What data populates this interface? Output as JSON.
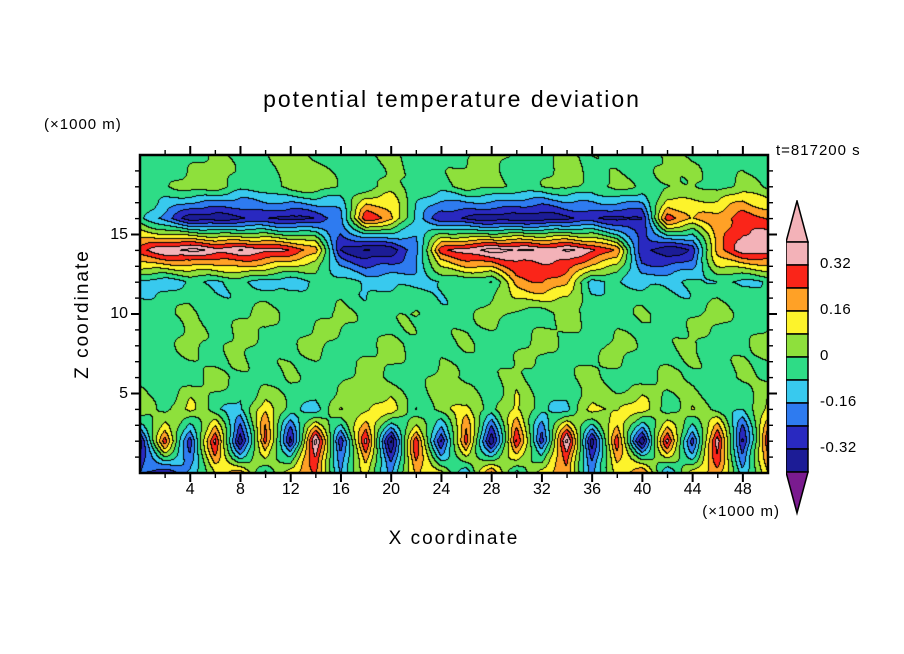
{
  "title": "potential temperature deviation",
  "time_label": "t=817200 s",
  "x_axis": {
    "label": "X coordinate",
    "unit": "(×1000 m)",
    "min": 0,
    "max": 50,
    "major_step": 4,
    "minor_step": 2,
    "ticks": [
      4,
      8,
      12,
      16,
      20,
      24,
      28,
      32,
      36,
      40,
      44,
      48
    ]
  },
  "y_axis": {
    "label": "Z coordinate",
    "unit": "(×1000 m)",
    "min": 0,
    "max": 20,
    "major_step": 5,
    "minor_step": 1,
    "ticks": [
      5,
      10,
      15
    ]
  },
  "colorbar": {
    "labels": [
      "0.32",
      "0.16",
      "0",
      "-0.16",
      "-0.32"
    ]
  },
  "chart_data": {
    "type": "contour",
    "title": "potential temperature deviation",
    "time": "t=817200 s",
    "xlabel": "X coordinate",
    "zlabel": "Z coordinate",
    "x_unit": "(×1000 m)",
    "z_unit": "(×1000 m)",
    "x_range": [
      0,
      50
    ],
    "z_range": [
      0,
      20
    ],
    "levels": [
      -0.4,
      -0.32,
      -0.24,
      -0.16,
      -0.08,
      0,
      0.08,
      0.16,
      0.24,
      0.32,
      0.4
    ],
    "palette": [
      "#7a1b8f",
      "#1c1c96",
      "#2929c0",
      "#2e7bf0",
      "#38c9ee",
      "#2edc86",
      "#8ee03c",
      "#fdf32b",
      "#ffa126",
      "#fa2519",
      "#f3b2b8",
      "#f3b2b8"
    ],
    "x": [
      0,
      2,
      4,
      6,
      8,
      10,
      12,
      14,
      16,
      18,
      20,
      22,
      24,
      26,
      28,
      30,
      32,
      34,
      36,
      38,
      40,
      42,
      44,
      46,
      48,
      50
    ],
    "z": [
      20,
      18,
      16,
      14,
      12,
      10,
      8,
      6,
      4,
      2,
      0
    ],
    "values": [
      [
        -0.03,
        -0.04,
        -0.02,
        0.03,
        -0.04,
        -0.03,
        0.04,
        -0.02,
        -0.04,
        -0.03,
        0.03,
        -0.04,
        -0.02,
        -0.03,
        0.04,
        -0.03,
        -0.04,
        0.03,
        -0.02,
        -0.04,
        -0.03,
        0.04,
        -0.03,
        -0.02,
        -0.04,
        -0.03
      ],
      [
        -0.04,
        -0.02,
        0.04,
        0.05,
        -0.03,
        -0.04,
        0.03,
        0.06,
        -0.02,
        -0.04,
        0.04,
        -0.03,
        -0.04,
        0.05,
        0.03,
        -0.04,
        -0.02,
        0.04,
        -0.03,
        0.05,
        -0.04,
        -0.02,
        0.03,
        -0.04,
        0.04,
        -0.03
      ],
      [
        -0.05,
        -0.2,
        -0.35,
        -0.38,
        -0.35,
        -0.3,
        -0.35,
        -0.3,
        -0.2,
        0.3,
        0.2,
        -0.1,
        -0.3,
        -0.35,
        -0.38,
        -0.35,
        -0.38,
        -0.35,
        -0.3,
        -0.35,
        -0.3,
        0.28,
        0.15,
        0.2,
        0.3,
        0.25
      ],
      [
        0.3,
        0.38,
        0.42,
        0.38,
        0.4,
        0.35,
        0.3,
        0.2,
        -0.3,
        -0.42,
        -0.38,
        -0.2,
        0.3,
        0.38,
        0.42,
        0.4,
        0.38,
        0.42,
        0.35,
        0.2,
        -0.3,
        -0.38,
        -0.3,
        0.2,
        0.35,
        0.4
      ],
      [
        -0.1,
        -0.12,
        -0.08,
        -0.1,
        -0.06,
        -0.1,
        -0.12,
        -0.08,
        -0.05,
        -0.1,
        -0.08,
        -0.12,
        -0.1,
        -0.06,
        -0.08,
        0.2,
        0.25,
        0.15,
        -0.1,
        -0.06,
        -0.12,
        -0.1,
        -0.08,
        -0.06,
        -0.1,
        -0.08
      ],
      [
        -0.04,
        -0.03,
        0.04,
        -0.05,
        -0.03,
        0.05,
        -0.04,
        -0.02,
        0.04,
        -0.05,
        -0.03,
        0.03,
        -0.04,
        -0.05,
        0.05,
        -0.03,
        -0.04,
        0.04,
        -0.02,
        -0.05,
        0.03,
        -0.04,
        -0.03,
        0.05,
        -0.04,
        -0.03
      ],
      [
        -0.03,
        -0.05,
        0.03,
        -0.04,
        0.05,
        -0.03,
        -0.04,
        0.04,
        -0.05,
        -0.03,
        0.05,
        -0.04,
        -0.03,
        0.03,
        -0.05,
        -0.04,
        0.04,
        -0.03,
        -0.05,
        0.05,
        -0.04,
        -0.03,
        0.04,
        -0.05,
        -0.03,
        0.04
      ],
      [
        -0.04,
        -0.03,
        -0.05,
        0.04,
        -0.03,
        -0.05,
        0.03,
        -0.04,
        -0.05,
        0.05,
        -0.03,
        -0.04,
        0.04,
        -0.05,
        -0.03,
        0.05,
        -0.04,
        -0.03,
        0.03,
        -0.04,
        -0.05,
        0.04,
        -0.03,
        -0.05,
        0.04,
        -0.03
      ],
      [
        0.08,
        -0.06,
        0.12,
        -0.05,
        -0.1,
        0.15,
        -0.06,
        -0.12,
        0.1,
        0.05,
        0.15,
        -0.1,
        0.06,
        0.12,
        -0.05,
        0.1,
        -0.06,
        -0.1,
        0.12,
        0.05,
        0.15,
        -0.06,
        0.1,
        -0.05,
        -0.1,
        0.12
      ],
      [
        -0.35,
        0.3,
        -0.3,
        0.35,
        -0.4,
        0.3,
        -0.35,
        0.42,
        -0.3,
        0.35,
        -0.4,
        0.3,
        -0.35,
        0.3,
        -0.4,
        0.35,
        -0.3,
        0.42,
        -0.35,
        0.3,
        -0.4,
        0.35,
        -0.3,
        0.4,
        -0.35,
        0.3
      ],
      [
        -0.25,
        -0.3,
        -0.15,
        0.1,
        0.2,
        -0.12,
        0.15,
        0.25,
        -0.15,
        0.1,
        -0.2,
        0.2,
        0.1,
        -0.15,
        0.25,
        -0.12,
        0.15,
        0.2,
        -0.2,
        0.1,
        0.25,
        -0.15,
        0.1,
        0.2,
        -0.12,
        0.15
      ]
    ]
  }
}
